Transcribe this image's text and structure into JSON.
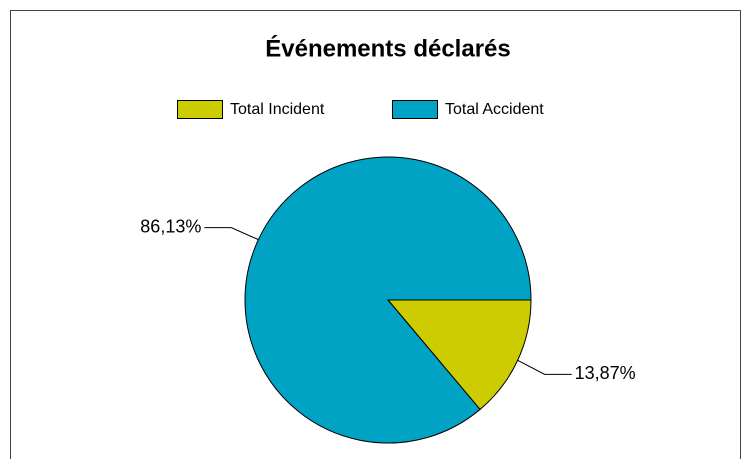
{
  "chart_data": {
    "type": "pie",
    "title": "Événements déclarés",
    "categories": [
      "Total Incident",
      "Total Accident"
    ],
    "values": [
      13.87,
      86.13
    ],
    "value_labels": [
      "13,87%",
      "86,13%"
    ],
    "colors": [
      "#cccc00",
      "#00a3c4"
    ],
    "legend": "top"
  }
}
